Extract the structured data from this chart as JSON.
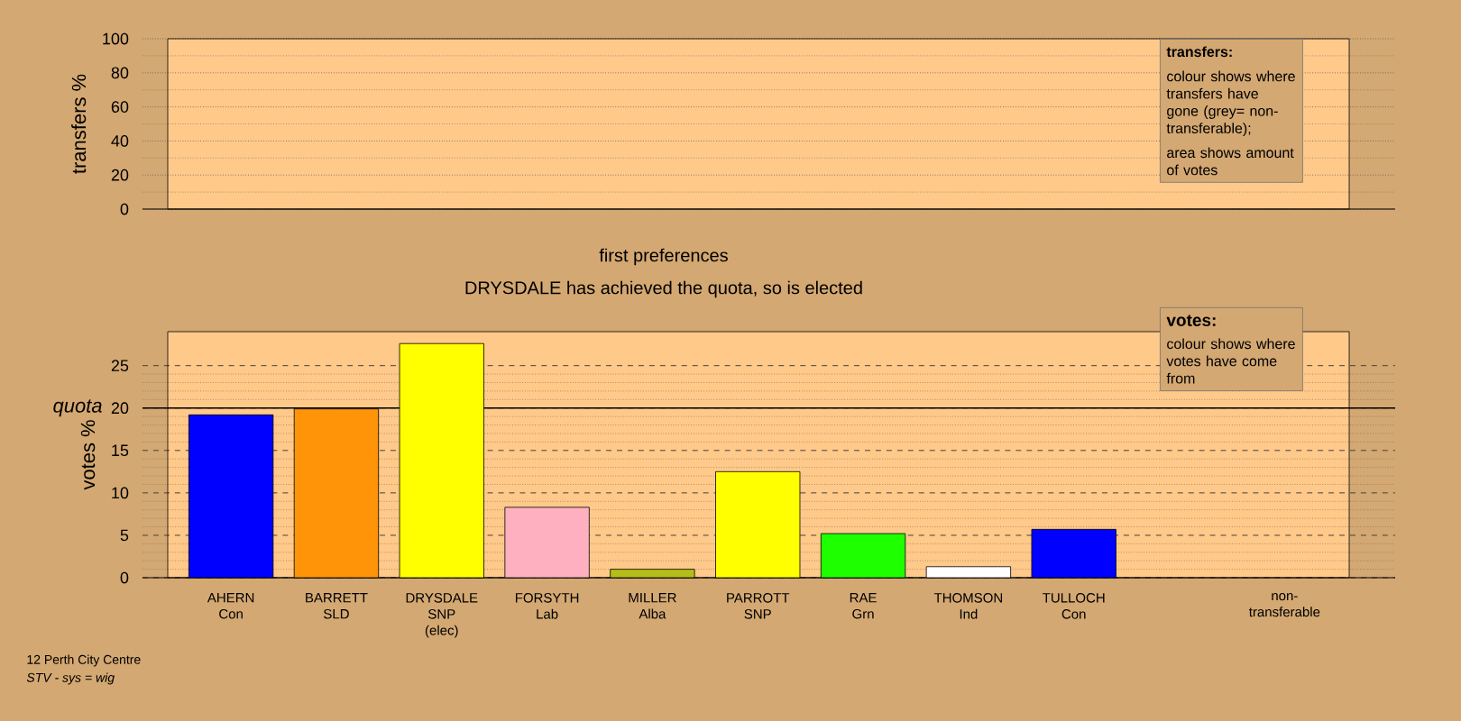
{
  "chart_data": [
    {
      "type": "bar",
      "ylabel": "transfers %",
      "categories": [
        null,
        null,
        null,
        null,
        null,
        null,
        null,
        null,
        null,
        null,
        null
      ],
      "values": [
        null,
        null,
        null,
        null,
        null,
        null,
        null,
        null,
        null,
        null,
        null
      ],
      "ylim": [
        0,
        100
      ],
      "yticks": [
        0,
        20,
        40,
        60,
        80,
        100
      ],
      "grid": "y",
      "tick_labels": "y",
      "annotations": [
        "transfers:",
        "colour shows where transfers have gone (grey= non-transferable);",
        "area shows amount of votes"
      ]
    },
    {
      "type": "bar",
      "title": "first preferences",
      "subtitle": "DRYSDALE has achieved the quota, so is elected",
      "ylabel": "votes %",
      "categories": [
        "AHERN\nCon",
        "BARRETT\nSLD",
        "DRYSDALE\nSNP\n(elec)",
        "FORSYTH\nLab",
        "MILLER\nAlba",
        "PARROTT\nSNP",
        "RAE\nGrn",
        "THOMSON\nInd",
        "TULLOCH\nCon",
        null,
        "non-transferable"
      ],
      "values": [
        19.2,
        19.9,
        27.6,
        8.3,
        1.0,
        12.5,
        5.2,
        1.3,
        5.7,
        null,
        null
      ],
      "colors": [
        "#0000ff",
        "#ff9408",
        "#ffff00",
        "#ffb0c0",
        "#b5bd1a",
        "#ffff00",
        "#1eff00",
        "#ffffff",
        "#0000ff",
        null,
        null
      ],
      "ylim": [
        0,
        29
      ],
      "yticks": [
        0,
        5,
        10,
        15,
        20,
        25
      ],
      "grid": "y",
      "ref_lines": [
        {
          "axis": "y",
          "value": 20,
          "label": "quota"
        }
      ],
      "annotations": [
        "votes:",
        "colour shows where votes have come from",
        "12 Perth City Centre",
        "STV - sys = wig"
      ]
    }
  ]
}
